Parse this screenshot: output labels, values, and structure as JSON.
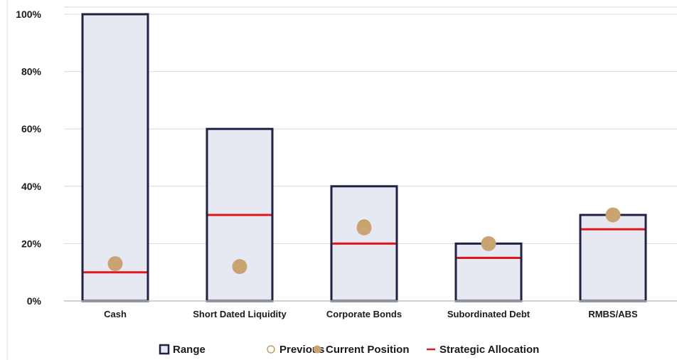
{
  "chart_data": {
    "type": "bar",
    "title": "",
    "xlabel": "",
    "ylabel": "",
    "ylim": [
      0,
      100
    ],
    "yticks": [
      0,
      20,
      40,
      60,
      80,
      100
    ],
    "ytick_labels": [
      "0%",
      "20%",
      "40%",
      "60%",
      "80%",
      "100%"
    ],
    "grid": true,
    "legend_position": "bottom",
    "categories": [
      "Cash",
      "Short Dated Liquidity",
      "Corporate Bonds",
      "Subordinated Debt",
      "RMBS/ABS"
    ],
    "series": [
      {
        "name": "Range",
        "kind": "range",
        "low": [
          0,
          0,
          0,
          0,
          0
        ],
        "high": [
          100,
          60,
          40,
          20,
          30
        ]
      },
      {
        "name": "Previous",
        "kind": "marker-open",
        "values": [
          13,
          12,
          26,
          20,
          30
        ]
      },
      {
        "name": "Current Position",
        "kind": "marker-filled",
        "values": [
          13,
          12,
          25.5,
          20,
          30
        ]
      },
      {
        "name": "Strategic Allocation",
        "kind": "line-marker",
        "values": [
          10,
          30,
          20,
          15,
          25
        ]
      }
    ],
    "colors": {
      "range_fill": "#e7e9f2",
      "range_border": "#1f2244",
      "current": "#c9a472",
      "previous": "#b8904f",
      "strategic": "#e0181c",
      "grid": "#d9d9d9"
    }
  }
}
